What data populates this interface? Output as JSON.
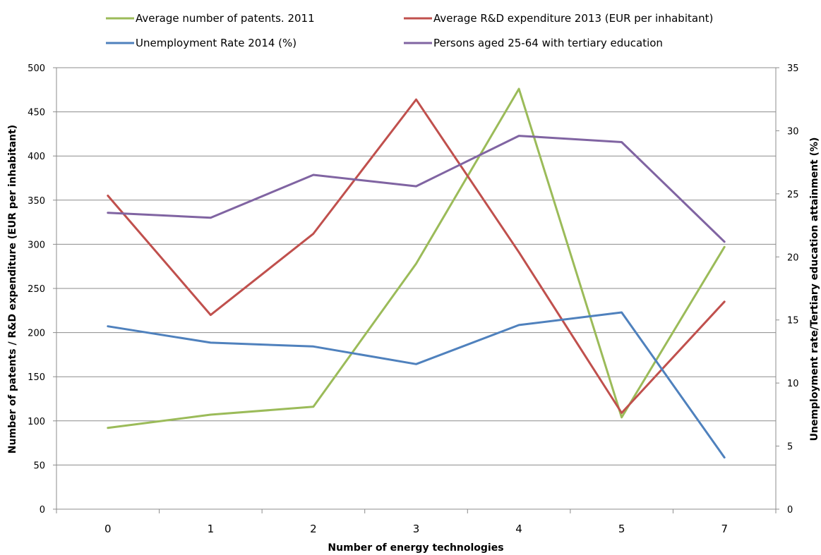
{
  "chart_data": {
    "type": "line",
    "categories": [
      "0",
      "1",
      "2",
      "3",
      "4",
      "5",
      "7"
    ],
    "xlabel": "Number of energy technologies",
    "ylabel_left": "Number of  patents / R&D expenditure (EUR per inhabitant)",
    "ylabel_right": "Unemployment rate/Tertiary education attainment (%)",
    "ylim_left": [
      0,
      500
    ],
    "ylim_right": [
      0,
      35
    ],
    "yticks_left": [
      "0",
      "50",
      "100",
      "150",
      "200",
      "250",
      "300",
      "350",
      "400",
      "450",
      "500"
    ],
    "yticks_right": [
      "0",
      "5",
      "10",
      "15",
      "20",
      "25",
      "30",
      "35"
    ],
    "grid": true,
    "legend_position": "top",
    "series": [
      {
        "name": "Average number of patents. 2011",
        "axis": "left",
        "color": "#9bbb59",
        "values": [
          92,
          107,
          116,
          278,
          476,
          104,
          297
        ]
      },
      {
        "name": "Average R&D expenditure 2013 (EUR per inhabitant)",
        "axis": "left",
        "color": "#c0504d",
        "values": [
          355,
          220,
          312,
          464,
          291,
          109,
          235
        ]
      },
      {
        "name": "Unemployment Rate 2014 (%)",
        "axis": "right",
        "color": "#4f81bd",
        "values": [
          14.5,
          13.2,
          12.9,
          11.5,
          14.6,
          15.6,
          4.1
        ]
      },
      {
        "name": "Persons aged 25-64 with tertiary education",
        "axis": "right",
        "color": "#8064a2",
        "values": [
          23.5,
          23.1,
          26.5,
          25.6,
          29.6,
          29.1,
          21.2
        ]
      }
    ]
  }
}
